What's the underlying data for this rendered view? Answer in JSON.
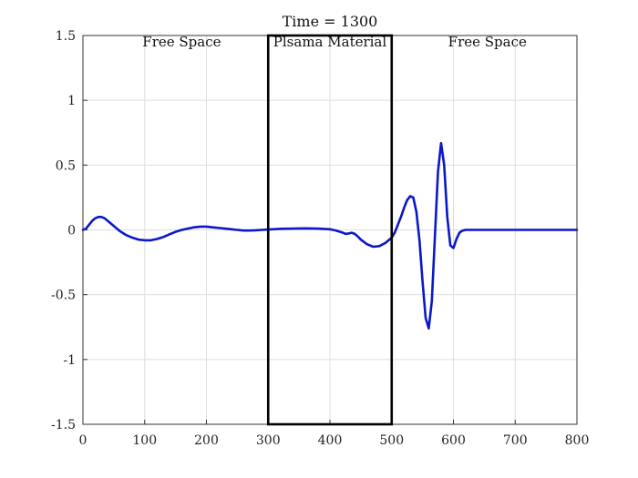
{
  "chart_data": {
    "type": "line",
    "title": "Time = 1300",
    "xlabel": "",
    "ylabel": "",
    "xlim": [
      0,
      800
    ],
    "ylim": [
      -1.5,
      1.5
    ],
    "grid": true,
    "x_ticks": [
      "0",
      "100",
      "200",
      "300",
      "400",
      "500",
      "600",
      "700",
      "800"
    ],
    "y_ticks": [
      "1.5",
      "1",
      "0.5",
      "0",
      "-0.5",
      "-1",
      "-1.5"
    ],
    "annotations": [
      {
        "text": "Free Space",
        "x": 160,
        "y": 1.45
      },
      {
        "text": "Plsama Material",
        "x": 400,
        "y": 1.45
      },
      {
        "text": "Free Space",
        "x": 655,
        "y": 1.45
      }
    ],
    "material_region": {
      "x_start": 300,
      "x_end": 500,
      "label": "Plsama Material"
    },
    "series": [
      {
        "color": "#0b17c8",
        "x": [
          0,
          5,
          10,
          15,
          20,
          25,
          30,
          35,
          40,
          45,
          50,
          60,
          70,
          80,
          90,
          100,
          110,
          120,
          130,
          140,
          150,
          160,
          170,
          180,
          190,
          200,
          210,
          220,
          230,
          240,
          250,
          260,
          270,
          280,
          290,
          300,
          320,
          340,
          360,
          380,
          400,
          410,
          420,
          425,
          430,
          435,
          440,
          445,
          450,
          460,
          470,
          480,
          490,
          500,
          505,
          510,
          515,
          520,
          525,
          530,
          535,
          540,
          545,
          550,
          555,
          560,
          565,
          570,
          575,
          580,
          585,
          590,
          595,
          600,
          605,
          610,
          615,
          620,
          640,
          660,
          680,
          700,
          720,
          740,
          760,
          780,
          800
        ],
        "y": [
          0.0,
          0.01,
          0.04,
          0.07,
          0.09,
          0.1,
          0.1,
          0.09,
          0.07,
          0.05,
          0.03,
          -0.01,
          -0.04,
          -0.06,
          -0.075,
          -0.08,
          -0.08,
          -0.07,
          -0.055,
          -0.035,
          -0.015,
          0.0,
          0.01,
          0.02,
          0.025,
          0.025,
          0.02,
          0.015,
          0.01,
          0.005,
          0.0,
          -0.005,
          -0.005,
          -0.003,
          0.0,
          0.003,
          0.008,
          0.01,
          0.012,
          0.01,
          0.005,
          -0.005,
          -0.02,
          -0.03,
          -0.028,
          -0.022,
          -0.03,
          -0.05,
          -0.075,
          -0.11,
          -0.13,
          -0.125,
          -0.1,
          -0.06,
          -0.02,
          0.04,
          0.1,
          0.17,
          0.23,
          0.26,
          0.25,
          0.14,
          -0.08,
          -0.4,
          -0.68,
          -0.76,
          -0.55,
          -0.05,
          0.45,
          0.67,
          0.5,
          0.1,
          -0.12,
          -0.14,
          -0.07,
          -0.02,
          -0.005,
          0.0,
          0.0,
          0.0,
          0.0,
          0.0,
          0.0,
          0.0,
          0.0,
          0.0,
          0.0
        ]
      }
    ]
  }
}
